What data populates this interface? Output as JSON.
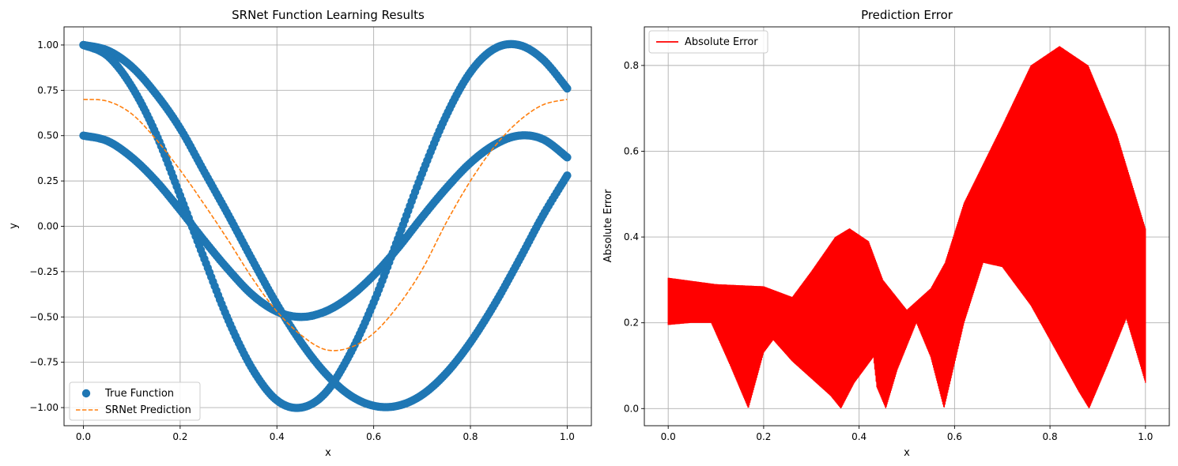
{
  "chart_data": [
    {
      "type": "scatter",
      "title": "SRNet Function Learning Results",
      "xlabel": "x",
      "ylabel": "y",
      "xlim": [
        -0.04,
        1.05
      ],
      "ylim": [
        -1.1,
        1.1
      ],
      "xticks": [
        0.0,
        0.2,
        0.4,
        0.6,
        0.8,
        1.0
      ],
      "xtick_labels": [
        "0.0",
        "0.2",
        "0.4",
        "0.6",
        "0.8",
        "1.0"
      ],
      "yticks": [
        -1.0,
        -0.75,
        -0.5,
        -0.25,
        0.0,
        0.25,
        0.5,
        0.75,
        1.0
      ],
      "ytick_labels": [
        "−1.00",
        "−0.75",
        "−0.50",
        "−0.25",
        "0.00",
        "0.25",
        "0.50",
        "0.75",
        "1.00"
      ],
      "grid": true,
      "legend_position": "lower-left",
      "series": [
        {
          "name": "True Function",
          "style": "scatter",
          "color": "#1f77b4",
          "branches": [
            {
              "x": [
                0.0,
                0.05,
                0.1,
                0.15,
                0.2,
                0.25,
                0.3,
                0.35,
                0.4,
                0.45,
                0.5,
                0.55,
                0.6,
                0.65,
                0.7,
                0.75,
                0.8,
                0.85,
                0.9,
                0.95,
                1.0
              ],
              "y": [
                1.0,
                0.97,
                0.88,
                0.73,
                0.54,
                0.3,
                0.06,
                -0.19,
                -0.43,
                -0.64,
                -0.81,
                -0.93,
                -0.99,
                -0.99,
                -0.93,
                -0.81,
                -0.64,
                -0.43,
                -0.19,
                0.06,
                0.28
              ]
            },
            {
              "x": [
                0.0,
                0.05,
                0.1,
                0.15,
                0.2,
                0.25,
                0.3,
                0.35,
                0.4,
                0.45,
                0.5,
                0.55,
                0.6,
                0.65,
                0.7,
                0.75,
                0.8,
                0.85,
                0.9,
                0.95,
                1.0
              ],
              "y": [
                1.0,
                0.94,
                0.77,
                0.51,
                0.17,
                -0.18,
                -0.52,
                -0.79,
                -0.96,
                -1.0,
                -0.92,
                -0.71,
                -0.42,
                -0.07,
                0.29,
                0.61,
                0.85,
                0.98,
                1.0,
                0.92,
                0.76
              ]
            },
            {
              "x": [
                0.0,
                0.05,
                0.1,
                0.15,
                0.2,
                0.25,
                0.3,
                0.35,
                0.4,
                0.45,
                0.5,
                0.55,
                0.6,
                0.65,
                0.7,
                0.75,
                0.8,
                0.85,
                0.9,
                0.95,
                1.0
              ],
              "y": [
                0.5,
                0.47,
                0.38,
                0.25,
                0.09,
                -0.08,
                -0.24,
                -0.38,
                -0.47,
                -0.5,
                -0.47,
                -0.39,
                -0.27,
                -0.12,
                0.05,
                0.21,
                0.35,
                0.45,
                0.5,
                0.48,
                0.38
              ]
            }
          ]
        },
        {
          "name": "SRNet Prediction",
          "style": "dashed-line",
          "color": "#ff7f0e",
          "x": [
            0.0,
            0.05,
            0.1,
            0.15,
            0.2,
            0.25,
            0.3,
            0.35,
            0.4,
            0.45,
            0.5,
            0.55,
            0.6,
            0.65,
            0.7,
            0.75,
            0.8,
            0.85,
            0.9,
            0.95,
            1.0
          ],
          "y": [
            0.7,
            0.69,
            0.62,
            0.48,
            0.31,
            0.12,
            -0.08,
            -0.29,
            -0.47,
            -0.6,
            -0.68,
            -0.67,
            -0.59,
            -0.44,
            -0.24,
            0.02,
            0.25,
            0.44,
            0.58,
            0.67,
            0.7
          ]
        }
      ]
    },
    {
      "type": "area",
      "title": "Prediction Error",
      "xlabel": "x",
      "ylabel": "Absolute Error",
      "xlim": [
        -0.05,
        1.05
      ],
      "ylim": [
        -0.04,
        0.89
      ],
      "xticks": [
        0.0,
        0.2,
        0.4,
        0.6,
        0.8,
        1.0
      ],
      "xtick_labels": [
        "0.0",
        "0.2",
        "0.4",
        "0.6",
        "0.8",
        "1.0"
      ],
      "yticks": [
        0.0,
        0.2,
        0.4,
        0.6,
        0.8
      ],
      "ytick_labels": [
        "0.0",
        "0.2",
        "0.4",
        "0.6",
        "0.8"
      ],
      "grid": true,
      "legend_position": "upper-left",
      "series": [
        {
          "name": "Absolute Error",
          "color": "#ff0000",
          "upper": {
            "x": [
              0.0,
              0.1,
              0.2,
              0.26,
              0.3,
              0.35,
              0.38,
              0.42,
              0.45,
              0.5,
              0.55,
              0.58,
              0.62,
              0.7,
              0.76,
              0.82,
              0.88,
              0.94,
              1.0
            ],
            "y": [
              0.305,
              0.29,
              0.285,
              0.26,
              0.32,
              0.4,
              0.42,
              0.39,
              0.3,
              0.23,
              0.28,
              0.34,
              0.48,
              0.66,
              0.8,
              0.845,
              0.8,
              0.64,
              0.42
            ]
          },
          "lower": {
            "x": [
              0.0,
              0.05,
              0.09,
              0.13,
              0.168,
              0.2,
              0.22,
              0.26,
              0.3,
              0.34,
              0.362,
              0.39,
              0.43,
              0.437,
              0.456,
              0.48,
              0.52,
              0.55,
              0.578,
              0.62,
              0.66,
              0.7,
              0.76,
              0.82,
              0.86,
              0.882,
              0.92,
              0.96,
              1.0
            ],
            "y": [
              0.195,
              0.2,
              0.2,
              0.1,
              0.0,
              0.13,
              0.16,
              0.11,
              0.07,
              0.03,
              0.0,
              0.06,
              0.12,
              0.05,
              0.0,
              0.09,
              0.2,
              0.12,
              0.0,
              0.2,
              0.34,
              0.33,
              0.24,
              0.12,
              0.04,
              0.0,
              0.1,
              0.21,
              0.06
            ]
          }
        }
      ]
    }
  ]
}
